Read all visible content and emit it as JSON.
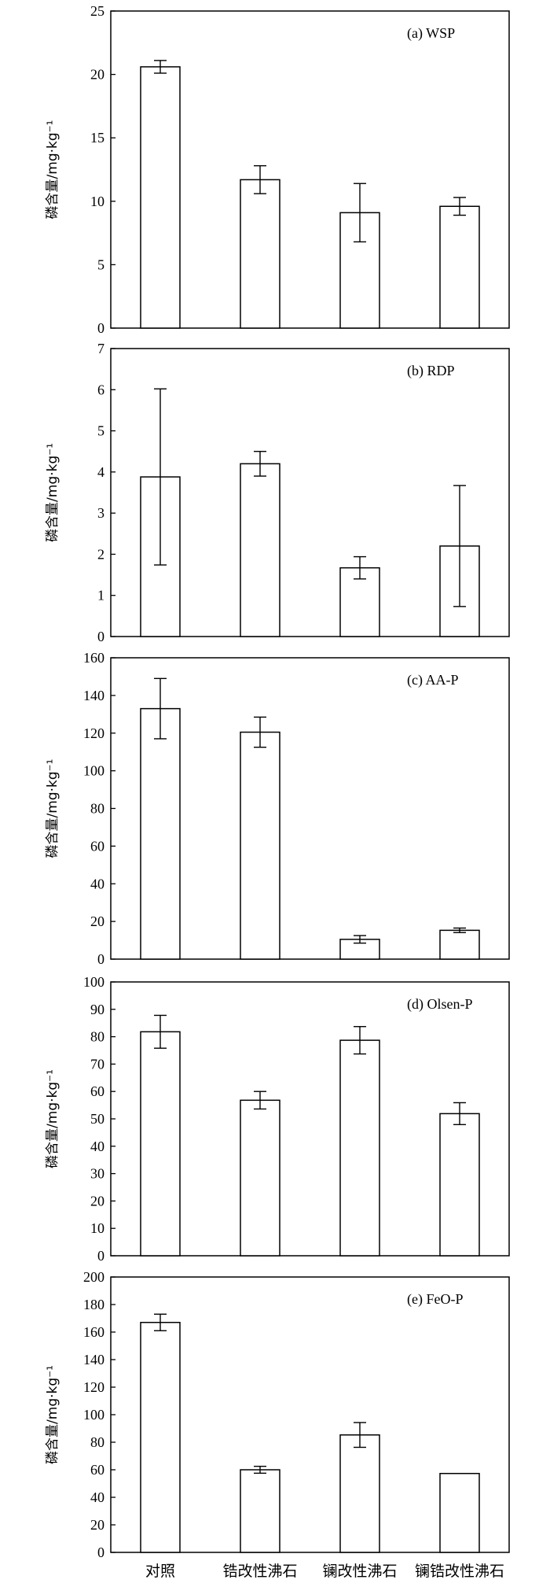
{
  "chart_data": [
    {
      "type": "bar",
      "panel_label": "(a) WSP",
      "ylabel": "磷含量/mg·kg⁻¹",
      "ylim": [
        0,
        25
      ],
      "yticks": [
        "0",
        "5",
        "10",
        "15",
        "20",
        "25"
      ],
      "categories": [
        "对照",
        "锆改性沸石",
        "镧改性沸石",
        "镧锆改性沸石"
      ],
      "values": [
        20.6,
        11.7,
        9.1,
        9.6
      ],
      "errors": [
        0.5,
        1.1,
        2.3,
        0.7
      ]
    },
    {
      "type": "bar",
      "panel_label": "(b) RDP",
      "ylabel": "磷含量/mg·kg⁻¹",
      "ylim": [
        0,
        7
      ],
      "yticks": [
        "0",
        "1",
        "2",
        "3",
        "4",
        "5",
        "6",
        "7"
      ],
      "categories": [
        "对照",
        "锆改性沸石",
        "镧改性沸石",
        "镧锆改性沸石"
      ],
      "values": [
        3.88,
        4.2,
        1.67,
        2.2
      ],
      "errors": [
        2.14,
        0.3,
        0.27,
        1.47
      ]
    },
    {
      "type": "bar",
      "panel_label": "(c) AA-P",
      "ylabel": "磷含量/mg·kg⁻¹",
      "ylim": [
        0,
        160
      ],
      "yticks": [
        "0",
        "20",
        "40",
        "60",
        "80",
        "100",
        "120",
        "140",
        "160"
      ],
      "categories": [
        "对照",
        "锆改性沸石",
        "镧改性沸石",
        "镧锆改性沸石"
      ],
      "values": [
        133,
        120.5,
        10.5,
        15.3
      ],
      "errors": [
        16,
        8,
        2,
        1.2
      ]
    },
    {
      "type": "bar",
      "panel_label": "(d) Olsen-P",
      "ylabel": "磷含量/mg·kg⁻¹",
      "ylim": [
        0,
        100
      ],
      "yticks": [
        "0",
        "10",
        "20",
        "30",
        "40",
        "50",
        "60",
        "70",
        "80",
        "90",
        "100"
      ],
      "categories": [
        "对照",
        "锆改性沸石",
        "镧改性沸石",
        "镧锆改性沸石"
      ],
      "values": [
        81.8,
        56.8,
        78.7,
        51.9
      ],
      "errors": [
        6,
        3.2,
        5,
        4
      ]
    },
    {
      "type": "bar",
      "panel_label": "(e) FeO-P",
      "ylabel": "磷含量/mg·kg⁻¹",
      "ylim": [
        0,
        200
      ],
      "yticks": [
        "0",
        "20",
        "40",
        "60",
        "80",
        "100",
        "120",
        "140",
        "160",
        "180",
        "200"
      ],
      "categories": [
        "对照",
        "锆改性沸石",
        "镧改性沸石",
        "镧锆改性沸石"
      ],
      "values": [
        167,
        60,
        85.3,
        57.3
      ],
      "errors": [
        6,
        2.5,
        9,
        0
      ]
    }
  ]
}
